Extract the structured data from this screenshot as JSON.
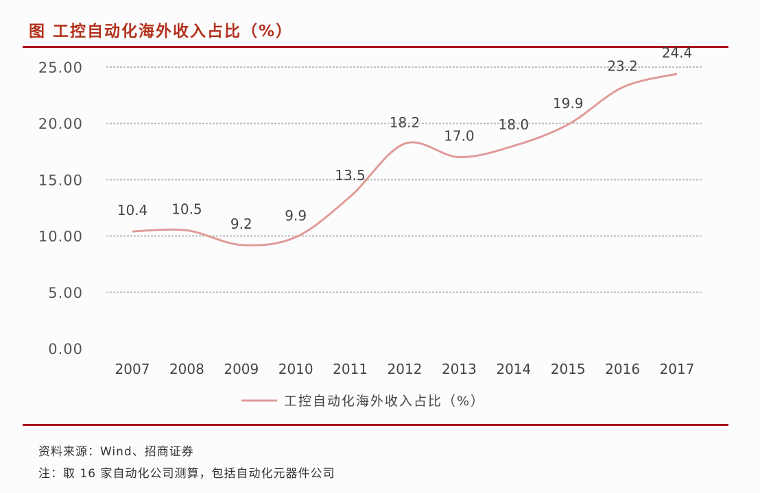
{
  "title": "图 工控自动化海外收入占比（%）",
  "source": "资料来源：Wind、招商证券",
  "note": "注：取 16 家自动化公司测算，包括自动化元器件公司",
  "colors": {
    "title": "#b2311c",
    "rule": "#a8141c",
    "line": "#e09a98",
    "grid": "#bdbdbd",
    "text": "#555555"
  },
  "chart_data": {
    "type": "line",
    "title": "",
    "x": [
      "2007",
      "2008",
      "2009",
      "2010",
      "2011",
      "2012",
      "2013",
      "2014",
      "2015",
      "2016",
      "2017"
    ],
    "series": [
      {
        "name": "工控自动化海外收入占比（%）",
        "values": [
          10.4,
          10.5,
          9.2,
          9.9,
          13.5,
          18.2,
          17.0,
          18.0,
          19.9,
          23.2,
          24.4
        ]
      }
    ],
    "data_labels": [
      "10.4",
      "10.5",
      "9.2",
      "9.9",
      "13.5",
      "18.2",
      "17.0",
      "18.0",
      "19.9",
      "23.2",
      "24.4"
    ],
    "ylim": [
      0,
      25
    ],
    "yticks": [
      "0.00",
      "5.00",
      "10.00",
      "15.00",
      "20.00",
      "25.00"
    ],
    "grid": true,
    "smooth": true,
    "legend": "bottom"
  }
}
